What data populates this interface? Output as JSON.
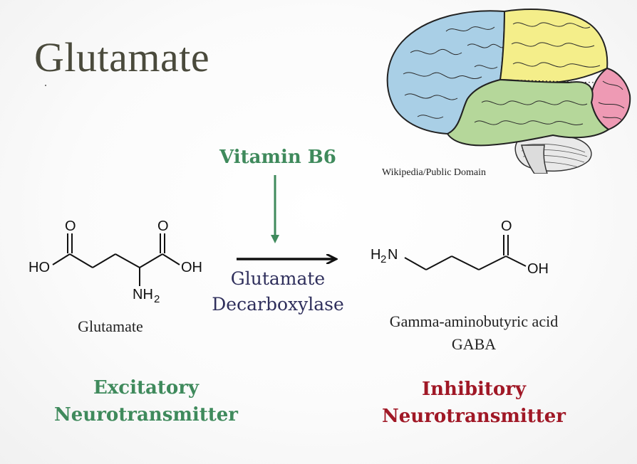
{
  "slide": {
    "title": "Glutamate",
    "image_credit": "Wikipedia/Public Domain",
    "cofactor": "Vitamin B6",
    "enzyme_line1": "Glutamate",
    "enzyme_line2": "Decarboxylase",
    "substrate": {
      "name": "Glutamate",
      "atoms": {
        "o_left": "O",
        "o_right": "O",
        "ho": "HO",
        "oh": "OH",
        "nh2": "NH",
        "nh2_sub": "2"
      },
      "role_line1": "Excitatory",
      "role_line2": "Neurotransmitter"
    },
    "product": {
      "name_line1": "Gamma-aminobutyric acid",
      "name_line2": "GABA",
      "atoms": {
        "o": "O",
        "oh": "OH",
        "h2n_h": "H",
        "h2n_sub": "2",
        "h2n_n": "N"
      },
      "role_line1": "Inhibitory",
      "role_line2": "Neurotransmitter"
    }
  },
  "colors": {
    "title": "#4a4a3c",
    "excitatory_green": "#3f8a5c",
    "inhibitory_red": "#a01826",
    "enzyme_navy": "#2f2f5c",
    "brain_frontal": "#a9cfe6",
    "brain_parietal": "#f4ee8a",
    "brain_temporal": "#b5d79a",
    "brain_occipital": "#ee9ab4"
  }
}
